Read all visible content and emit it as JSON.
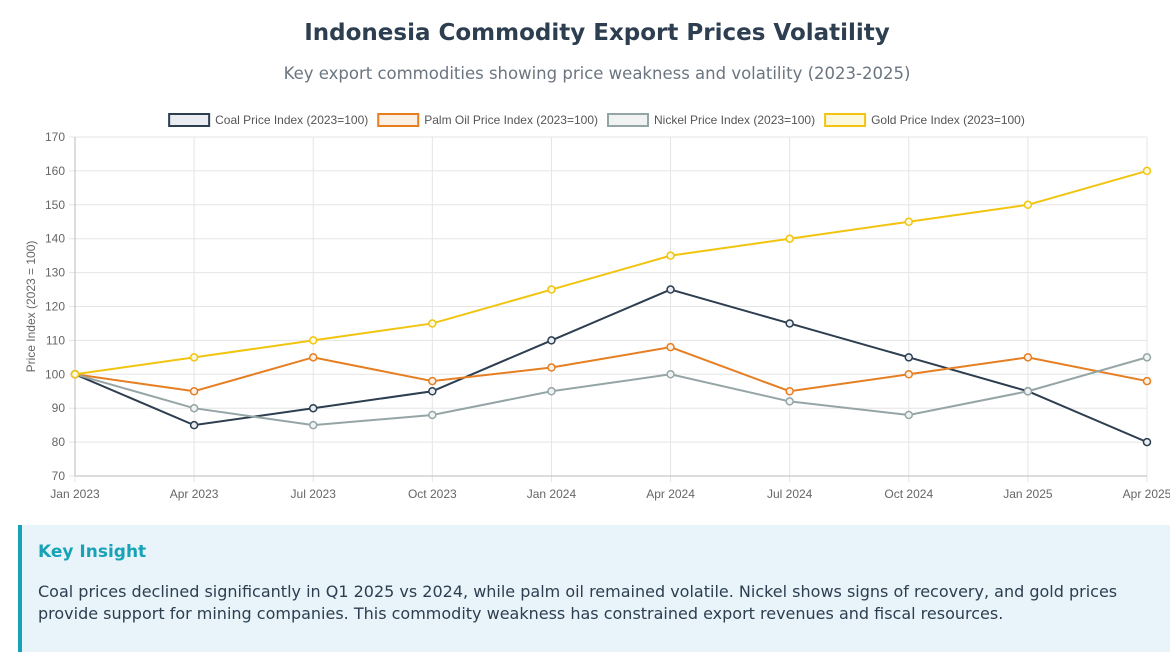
{
  "page": {
    "title": "Indonesia Commodity Export Prices Volatility",
    "subtitle": "Key export commodities showing price weakness and volatility (2023-2025)"
  },
  "insight": {
    "title": "Key Insight",
    "text": "Coal prices declined significantly in Q1 2025 vs 2024, while palm oil remained volatile. Nickel shows signs of recovery, and gold prices provide support for mining companies. This commodity weakness has constrained export revenues and fiscal resources."
  },
  "chart_data": {
    "type": "line",
    "title": "Indonesia Commodity Export Prices Volatility",
    "xlabel": "",
    "ylabel": "Price Index (2023 = 100)",
    "ylim": [
      70,
      170
    ],
    "yticks": [
      70,
      80,
      90,
      100,
      110,
      120,
      130,
      140,
      150,
      160,
      170
    ],
    "grid": true,
    "legend_position": "top",
    "categories": [
      "Jan 2023",
      "Apr 2023",
      "Jul 2023",
      "Oct 2023",
      "Jan 2024",
      "Apr 2024",
      "Jul 2024",
      "Oct 2024",
      "Jan 2025",
      "Apr 2025"
    ],
    "series": [
      {
        "name": "Coal Price Index (2023=100)",
        "color": "#2c3e50",
        "fill": "#e9edf1",
        "values": [
          100,
          85,
          90,
          95,
          110,
          125,
          115,
          105,
          95,
          80
        ]
      },
      {
        "name": "Palm Oil Price Index (2023=100)",
        "color": "#e67e22",
        "fill": "#fcefe3",
        "values": [
          100,
          95,
          105,
          98,
          102,
          108,
          95,
          100,
          105,
          98
        ]
      },
      {
        "name": "Nickel Price Index (2023=100)",
        "color": "#95a5a6",
        "fill": "#f1f3f3",
        "values": [
          100,
          90,
          85,
          88,
          95,
          100,
          92,
          88,
          95,
          105
        ]
      },
      {
        "name": "Gold Price Index (2023=100)",
        "color": "#f1c40f",
        "fill": "#fdf8dc",
        "values": [
          100,
          105,
          110,
          115,
          125,
          135,
          140,
          145,
          150,
          160
        ]
      }
    ]
  }
}
